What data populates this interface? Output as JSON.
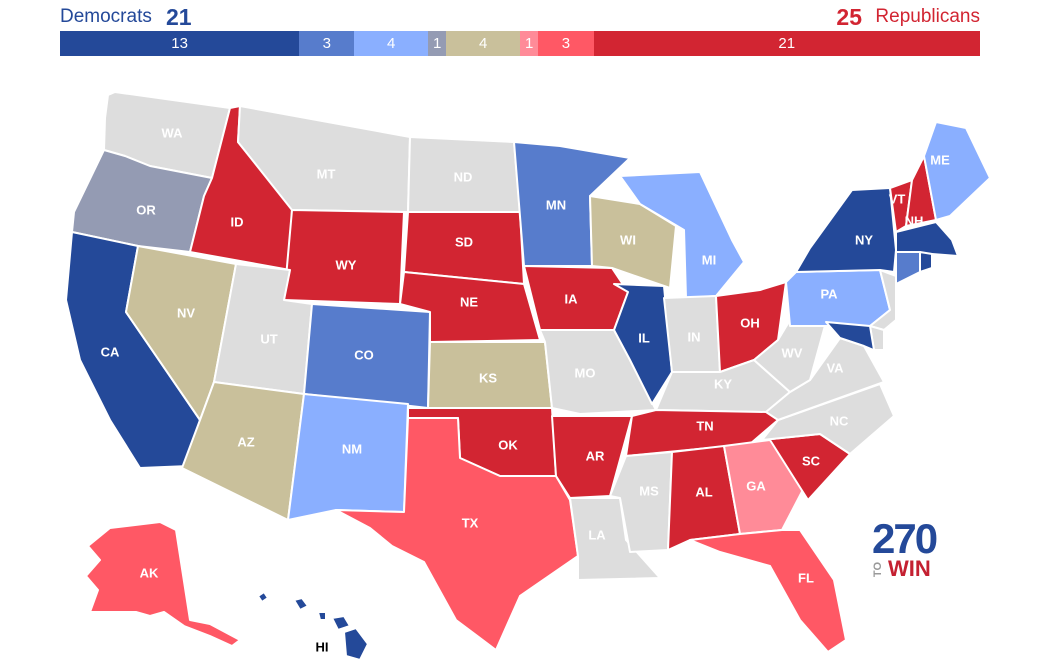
{
  "header": {
    "dem_label": "Democrats",
    "dem_count": "21",
    "rep_count": "25",
    "rep_label": "Republicans"
  },
  "bar": [
    {
      "label": "13",
      "value": 13,
      "color": "#244999"
    },
    {
      "label": "3",
      "value": 3,
      "color": "#577ccc"
    },
    {
      "label": "4",
      "value": 4,
      "color": "#8aafff"
    },
    {
      "label": "1",
      "value": 1,
      "color": "#949bb3"
    },
    {
      "label": "4",
      "value": 4,
      "color": "#c9c09b"
    },
    {
      "label": "1",
      "value": 1,
      "color": "#ff8b98"
    },
    {
      "label": "3",
      "value": 3,
      "color": "#ff5865"
    },
    {
      "label": "21",
      "value": 21,
      "color": "#d22532"
    }
  ],
  "colors": {
    "safe_dem": "#244999",
    "likely_dem": "#577ccc",
    "lean_dem": "#8aafff",
    "tilt_dem": "#949bb3",
    "tossup": "#c9c09b",
    "tilt_rep": "#ff8b98",
    "lean_rep": "#ff5865",
    "safe_rep": "#d22532",
    "no_race": "#dddddd"
  },
  "states": {
    "WA": "no_race",
    "OR": "tilt_dem",
    "CA": "safe_dem",
    "ID": "safe_rep",
    "NV": "tossup",
    "MT": "no_race",
    "WY": "safe_rep",
    "UT": "no_race",
    "AZ": "tossup",
    "CO": "likely_dem",
    "NM": "lean_dem",
    "ND": "no_race",
    "SD": "safe_rep",
    "NE": "safe_rep",
    "KS": "tossup",
    "OK": "safe_rep",
    "TX": "lean_rep",
    "MN": "likely_dem",
    "IA": "safe_rep",
    "MO": "no_race",
    "AR": "safe_rep",
    "LA": "no_race",
    "WI": "tossup",
    "IL": "safe_dem",
    "MI": "lean_dem",
    "IN": "no_race",
    "OH": "safe_rep",
    "KY": "no_race",
    "TN": "safe_rep",
    "MS": "no_race",
    "AL": "safe_rep",
    "GA": "tilt_rep",
    "FL": "lean_rep",
    "SC": "safe_rep",
    "NC": "no_race",
    "VA": "no_race",
    "WV": "no_race",
    "PA": "lean_dem",
    "NY": "safe_dem",
    "VT": "safe_rep",
    "NH": "safe_rep",
    "ME": "lean_dem",
    "MA": "safe_dem",
    "CT": "likely_dem",
    "RI": "safe_dem",
    "NJ": "no_race",
    "DE": "no_race",
    "MD": "safe_dem",
    "AK": "lean_rep",
    "HI": "safe_dem"
  },
  "logo": {
    "number": "270",
    "to": "TO",
    "win": "WIN"
  }
}
